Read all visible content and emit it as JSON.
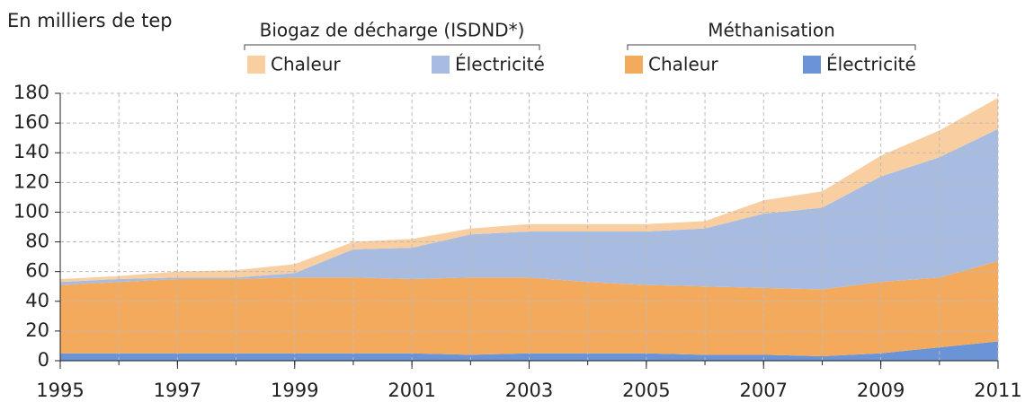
{
  "chart_data": {
    "type": "stacked_area",
    "y_label": "En milliers de tep",
    "x": [
      1995,
      1996,
      1997,
      1998,
      1999,
      2000,
      2001,
      2002,
      2003,
      2004,
      2005,
      2006,
      2007,
      2008,
      2009,
      2010,
      2011
    ],
    "xlim": [
      1995,
      2011
    ],
    "xticks": [
      1995,
      1997,
      1999,
      2001,
      2003,
      2005,
      2007,
      2009,
      2011
    ],
    "ylim": [
      0,
      180
    ],
    "yticks": [
      0,
      20,
      40,
      60,
      80,
      100,
      120,
      140,
      160,
      180
    ],
    "grid": true,
    "groups": [
      {
        "title": "Biogaz de décharge (ISDND*)",
        "series": [
          {
            "name": "Chaleur",
            "color": "#f9cfa2",
            "values": [
              2,
              2,
              4,
              5,
              6,
              5,
              6,
              4,
              5,
              5,
              5,
              5,
              9,
              11,
              14,
              18,
              21
            ]
          },
          {
            "name": "Électricité",
            "color": "#a8bce1",
            "values": [
              2,
              2,
              1,
              1,
              3,
              19,
              21,
              29,
              31,
              34,
              36,
              39,
              50,
              55,
              71,
              81,
              89
            ]
          }
        ]
      },
      {
        "title": "Méthanisation",
        "series": [
          {
            "name": "Chaleur",
            "color": "#f3aa5c",
            "values": [
              46,
              48,
              50,
              50,
              51,
              51,
              50,
              52,
              51,
              48,
              46,
              46,
              45,
              45,
              48,
              47,
              54
            ]
          },
          {
            "name": "Électricité",
            "color": "#6b94d6",
            "values": [
              5,
              5,
              5,
              5,
              5,
              5,
              5,
              4,
              5,
              5,
              5,
              4,
              4,
              3,
              5,
              9,
              13
            ]
          }
        ]
      }
    ]
  }
}
